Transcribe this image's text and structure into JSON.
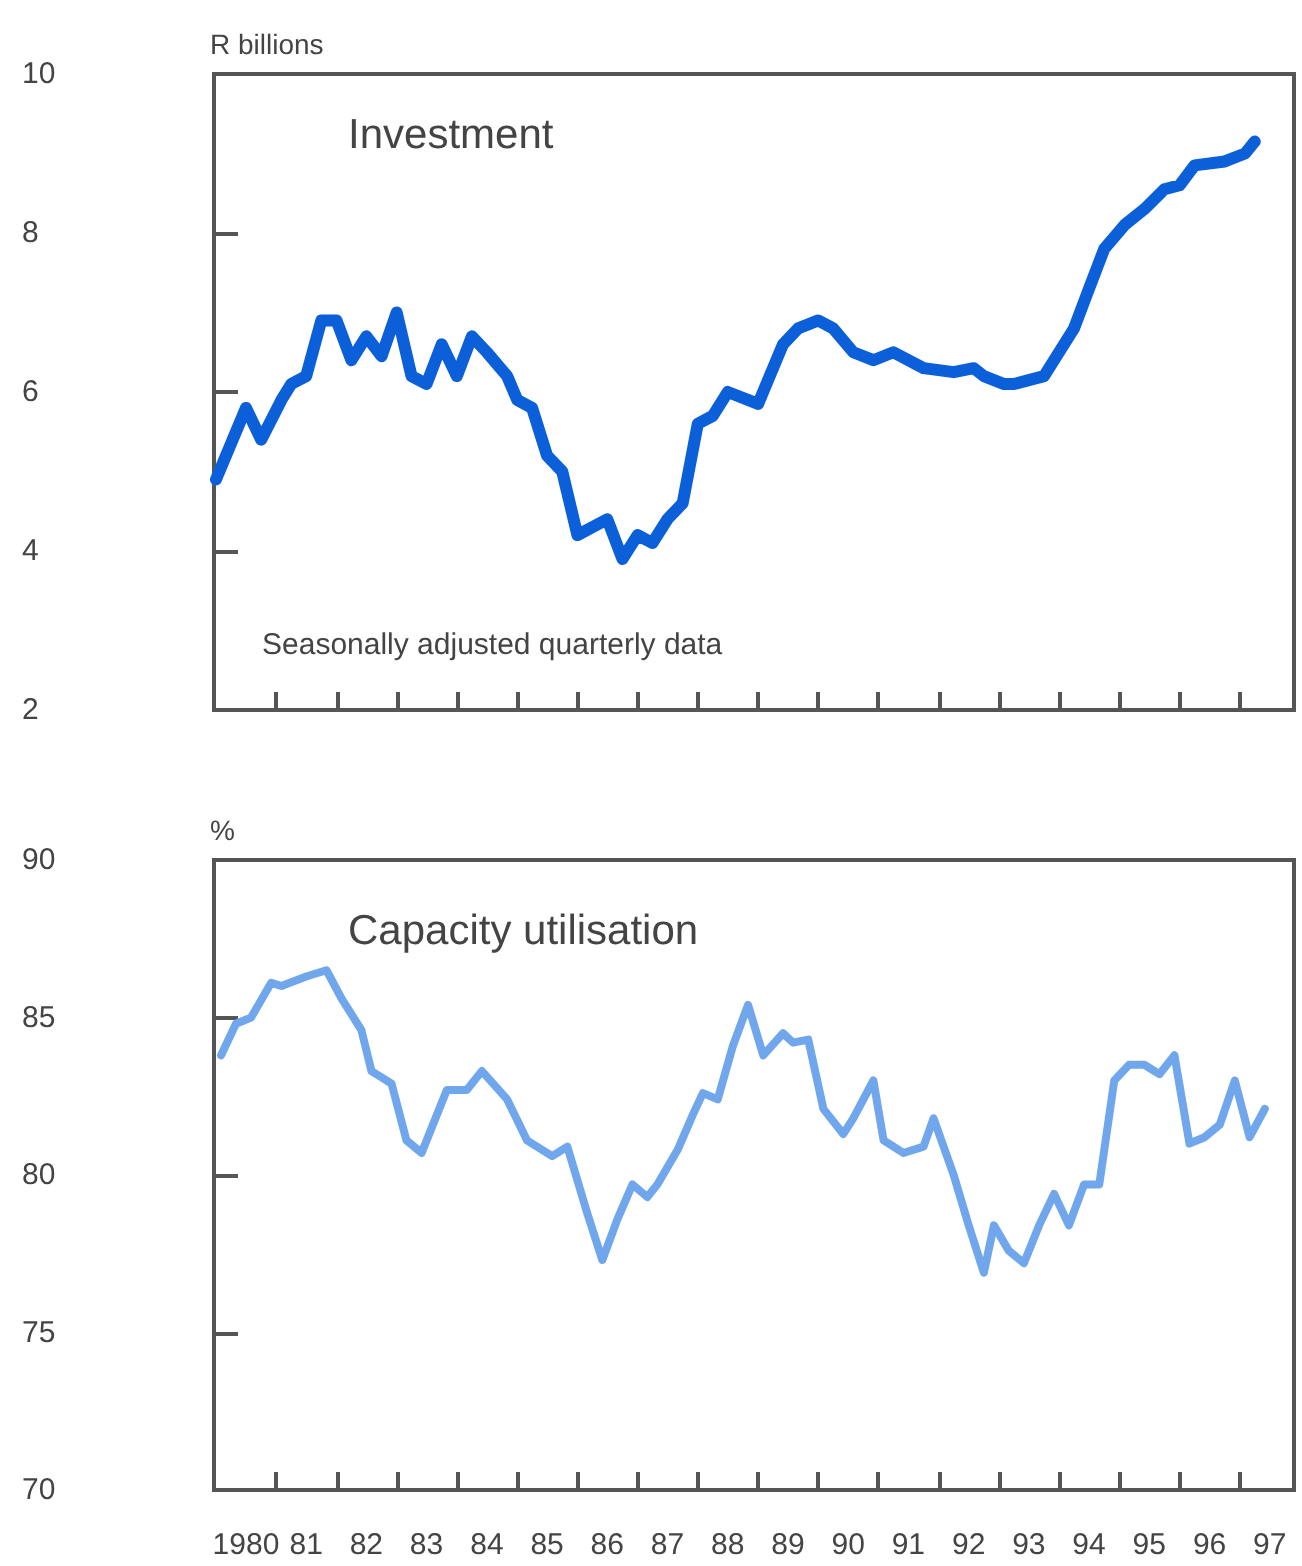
{
  "chart_data": [
    {
      "type": "line",
      "title": "Investment",
      "ylabel": "R billions",
      "annotations": [
        "Seasonally adjusted quarterly data"
      ],
      "color": "#0b5fd8",
      "tick_labels": "y",
      "x": [
        "1980-01",
        "1980-07",
        "1980-10",
        "1981-02",
        "1981-04",
        "1981-07",
        "1981-10",
        "1982-01",
        "1982-04",
        "1982-07",
        "1982-10",
        "1983-01",
        "1983-04",
        "1983-07",
        "1983-10",
        "1984-01",
        "1984-04",
        "1984-07",
        "1984-11",
        "1985-01",
        "1985-04",
        "1985-07",
        "1985-10",
        "1986-01",
        "1986-07",
        "1986-10",
        "1987-01",
        "1987-04",
        "1987-07",
        "1987-10",
        "1988-01",
        "1988-04",
        "1988-07",
        "1989-01",
        "1989-06",
        "1989-09",
        "1990-01",
        "1990-04",
        "1990-08",
        "1990-12",
        "1991-04",
        "1991-10",
        "1992-04",
        "1992-08",
        "1992-10",
        "1993-02",
        "1993-04",
        "1993-10",
        "1994-04",
        "1994-07",
        "1994-10",
        "1995-02",
        "1995-06",
        "1995-10",
        "1996-01",
        "1996-04",
        "1996-10",
        "1997-02",
        "1997-04"
      ],
      "values": [
        4.9,
        5.8,
        5.4,
        5.9,
        6.1,
        6.2,
        6.9,
        6.9,
        6.4,
        6.7,
        6.45,
        7.0,
        6.2,
        6.1,
        6.6,
        6.2,
        6.7,
        6.5,
        6.2,
        5.9,
        5.8,
        5.2,
        5.0,
        4.2,
        4.4,
        3.9,
        4.2,
        4.1,
        4.4,
        4.6,
        5.6,
        5.7,
        6.0,
        5.85,
        6.6,
        6.8,
        6.9,
        6.8,
        6.5,
        6.4,
        6.5,
        6.3,
        6.25,
        6.3,
        6.2,
        6.1,
        6.1,
        6.2,
        6.8,
        7.3,
        7.8,
        8.1,
        8.3,
        8.55,
        8.6,
        8.85,
        8.9,
        9.0,
        9.15
      ],
      "xlim": [
        "1979-12-20",
        "1997-11-25"
      ],
      "ylim": [
        2,
        10
      ],
      "yticks": [
        2,
        4,
        6,
        8,
        10
      ],
      "xticks": [
        {
          "value": "1981-01-01",
          "label": null
        },
        {
          "value": "1982-01-01",
          "label": null
        },
        {
          "value": "1983-01-01",
          "label": null
        },
        {
          "value": "1984-01-01",
          "label": null
        },
        {
          "value": "1985-01-01",
          "label": null
        },
        {
          "value": "1986-01-01",
          "label": null
        },
        {
          "value": "1987-01-01",
          "label": null
        },
        {
          "value": "1988-01-01",
          "label": null
        },
        {
          "value": "1989-01-01",
          "label": null
        },
        {
          "value": "1990-01-01",
          "label": null
        },
        {
          "value": "1991-01-01",
          "label": null
        },
        {
          "value": "1992-01-01",
          "label": null
        },
        {
          "value": "1993-01-01",
          "label": null
        },
        {
          "value": "1994-01-01",
          "label": null
        },
        {
          "value": "1995-01-01",
          "label": null
        },
        {
          "value": "1996-01-01",
          "label": null
        },
        {
          "value": "1997-01-01",
          "label": null
        }
      ]
    },
    {
      "type": "line",
      "title": "Capacity utilisation",
      "ylabel": "%",
      "color": "#70a7ec",
      "x": [
        "1980-02",
        "1980-05",
        "1980-08",
        "1980-12",
        "1981-02",
        "1981-07",
        "1981-11",
        "1982-02",
        "1982-06",
        "1982-08",
        "1982-12",
        "1983-03",
        "1983-06",
        "1983-11",
        "1984-03",
        "1984-06",
        "1984-11",
        "1985-03",
        "1985-08",
        "1985-11",
        "1986-03",
        "1986-06",
        "1986-09",
        "1986-12",
        "1987-03",
        "1987-05",
        "1987-09",
        "1987-12",
        "1988-02",
        "1988-05",
        "1988-08",
        "1988-11",
        "1989-02",
        "1989-06",
        "1989-08",
        "1989-11",
        "1990-02",
        "1990-06",
        "1990-08",
        "1990-12",
        "1991-02",
        "1991-06",
        "1991-10",
        "1991-12",
        "1992-04",
        "1992-07",
        "1992-10",
        "1992-12",
        "1993-03",
        "1993-06",
        "1993-09",
        "1993-12",
        "1994-03",
        "1994-06",
        "1994-09",
        "1994-12",
        "1995-03",
        "1995-06",
        "1995-09",
        "1995-12",
        "1996-03",
        "1996-06",
        "1996-09",
        "1996-12",
        "1997-03",
        "1997-06"
      ],
      "values": [
        83.8,
        84.8,
        85.0,
        86.1,
        86.0,
        86.3,
        86.5,
        85.6,
        84.6,
        83.3,
        82.9,
        81.1,
        80.7,
        82.7,
        82.7,
        83.3,
        82.4,
        81.1,
        80.6,
        80.9,
        78.8,
        77.3,
        78.6,
        79.7,
        79.3,
        79.7,
        80.8,
        81.9,
        82.6,
        82.4,
        84.1,
        85.4,
        83.8,
        84.5,
        84.2,
        84.3,
        82.1,
        81.3,
        81.8,
        83.0,
        81.1,
        80.7,
        80.9,
        81.8,
        80.0,
        78.4,
        76.9,
        78.4,
        77.6,
        77.2,
        78.4,
        79.4,
        78.4,
        79.7,
        79.7,
        83.0,
        83.5,
        83.5,
        83.2,
        83.8,
        81.0,
        81.2,
        81.6,
        83.0,
        81.2,
        82.1
      ],
      "xlim": [
        "1979-12-20",
        "1997-11-25"
      ],
      "ylim": [
        70,
        90
      ],
      "yticks": [
        70,
        75,
        80,
        85,
        90
      ],
      "xticks": [
        {
          "value": "1980-07-01",
          "label": "1980"
        },
        {
          "value": "1981-01-01",
          "label": null
        },
        {
          "value": "1981-07-01",
          "label": "81"
        },
        {
          "value": "1982-01-01",
          "label": null
        },
        {
          "value": "1982-07-01",
          "label": "82"
        },
        {
          "value": "1983-01-01",
          "label": null
        },
        {
          "value": "1983-07-01",
          "label": "83"
        },
        {
          "value": "1984-01-01",
          "label": null
        },
        {
          "value": "1984-07-01",
          "label": "84"
        },
        {
          "value": "1985-01-01",
          "label": null
        },
        {
          "value": "1985-07-01",
          "label": "85"
        },
        {
          "value": "1986-01-01",
          "label": null
        },
        {
          "value": "1986-07-01",
          "label": "86"
        },
        {
          "value": "1987-01-01",
          "label": null
        },
        {
          "value": "1987-07-01",
          "label": "87"
        },
        {
          "value": "1988-01-01",
          "label": null
        },
        {
          "value": "1988-07-01",
          "label": "88"
        },
        {
          "value": "1989-01-01",
          "label": null
        },
        {
          "value": "1989-07-01",
          "label": "89"
        },
        {
          "value": "1990-01-01",
          "label": null
        },
        {
          "value": "1990-07-01",
          "label": "90"
        },
        {
          "value": "1991-01-01",
          "label": null
        },
        {
          "value": "1991-07-01",
          "label": "91"
        },
        {
          "value": "1992-01-01",
          "label": null
        },
        {
          "value": "1992-07-01",
          "label": "92"
        },
        {
          "value": "1993-01-01",
          "label": null
        },
        {
          "value": "1993-07-01",
          "label": "93"
        },
        {
          "value": "1994-01-01",
          "label": null
        },
        {
          "value": "1994-07-01",
          "label": "94"
        },
        {
          "value": "1995-01-01",
          "label": null
        },
        {
          "value": "1995-07-01",
          "label": "95"
        },
        {
          "value": "1996-01-01",
          "label": null
        },
        {
          "value": "1996-07-01",
          "label": "96"
        },
        {
          "value": "1997-01-01",
          "label": null
        },
        {
          "value": "1997-07-01",
          "label": "97"
        }
      ]
    }
  ]
}
